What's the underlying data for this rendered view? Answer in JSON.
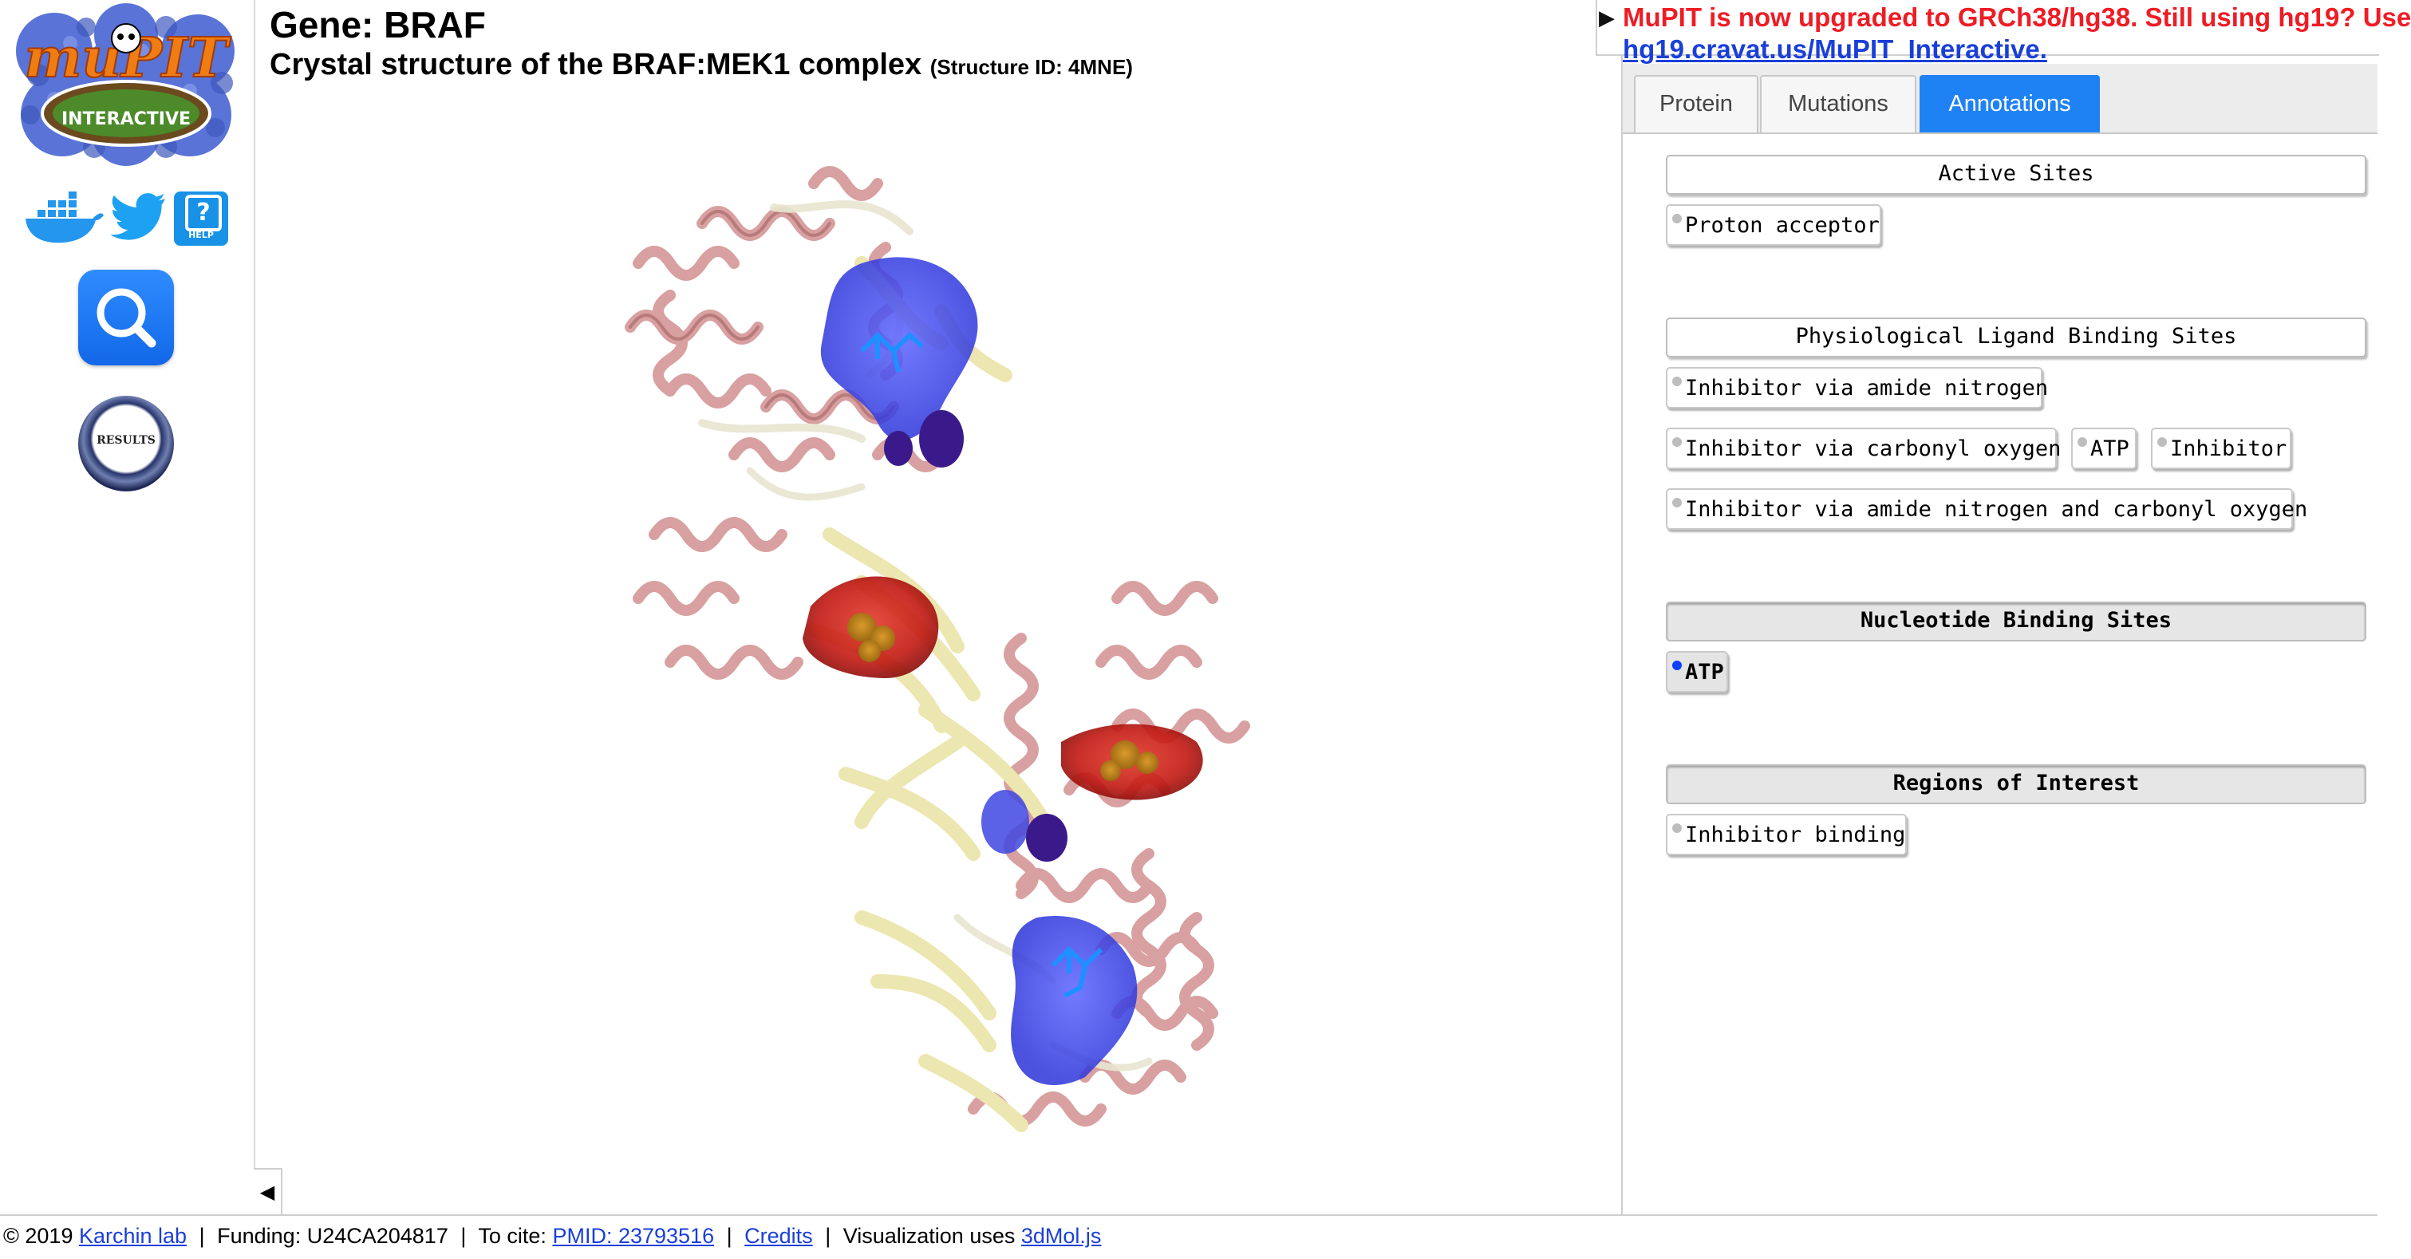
{
  "app": {
    "logo_text": "muPIT",
    "logo_sub": "INTERACTIVE",
    "colors": {
      "accent": "#1e82f5",
      "notice": "#ee1c25",
      "link": "#1a3fd8"
    }
  },
  "sidebar": {
    "icons": [
      "docker-icon",
      "twitter-icon",
      "help-icon",
      "search-icon",
      "results-icon"
    ],
    "help_label": "HELP",
    "results_label": "RESULTS"
  },
  "header": {
    "gene": "Gene: BRAF",
    "structure": "Crystal structure of the BRAF:MEK1 complex",
    "structure_id": "(Structure ID: 4MNE)"
  },
  "notice": {
    "text": "MuPIT is now upgraded to GRCh38/hg38. Still using hg19? Use",
    "link": "hg19.cravat.us/MuPIT_Interactive."
  },
  "tabs": [
    {
      "label": "Protein"
    },
    {
      "label": "Mutations"
    },
    {
      "label": "Annotations",
      "active": true
    }
  ],
  "annotations": {
    "active_sites": {
      "title": "Active Sites",
      "items": [
        "Proton acceptor"
      ]
    },
    "ligand_sites": {
      "title": "Physiological Ligand Binding Sites",
      "items": [
        "Inhibitor via amide nitrogen",
        "Inhibitor via carbonyl oxygen",
        "ATP",
        "Inhibitor",
        "Inhibitor via amide nitrogen and carbonyl oxygen"
      ]
    },
    "nucleotide_sites": {
      "title": "Nucleotide Binding Sites",
      "items": [
        "ATP"
      ],
      "selected": "ATP"
    },
    "regions": {
      "title": "Regions of Interest",
      "items": [
        "Inhibitor binding"
      ]
    }
  },
  "viewer": {
    "collapse_glyph": "◀"
  },
  "footer": {
    "copyright": "© 2019",
    "lab_link": "Karchin lab",
    "funding": "Funding: U24CA204817",
    "cite_label": "To cite:",
    "pmid_link": "PMID: 23793516",
    "credits_link": "Credits",
    "viz_label": "Visualization uses",
    "viz_link": "3dMol.js",
    "separator": "|"
  }
}
